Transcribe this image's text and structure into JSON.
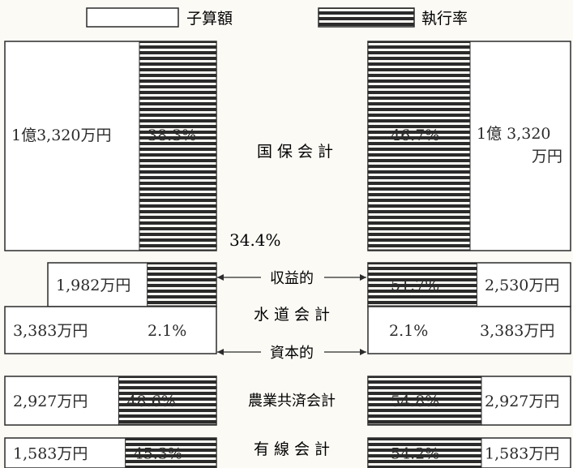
{
  "legend": {
    "items": [
      {
        "label": "子算額",
        "style": "outline"
      },
      {
        "label": "執行率",
        "style": "striped"
      }
    ]
  },
  "colors": {
    "ink": "#2b2b2b",
    "paper": "#fbfaf5",
    "box": "#ffffff"
  },
  "chart_data": {
    "type": "bar",
    "title": "",
    "categories": [
      "国 保 会 計",
      "水 道 会 計",
      "農業共済会計",
      "有 線 会 計"
    ],
    "sub_labels": {
      "revenue": "収益的",
      "capital": "資本的"
    },
    "left": [
      {
        "category": "国 保 会 計",
        "budget_label": "1億3,320万円",
        "rate_label": "38.3%",
        "rate": 38.3
      },
      {
        "category": "水 道 会 計",
        "sub": "収益的",
        "budget_label": "1,982万円",
        "rate_label": "",
        "rate": 34.4,
        "note": "34.4%"
      },
      {
        "category": "水 道 会 計",
        "sub": "資本的",
        "budget_label": "3,383万円",
        "rate_label": "2.1%",
        "rate": 2.1
      },
      {
        "category": "農業共済会計",
        "budget_label": "2,927万円",
        "rate_label": "48.6%",
        "rate": 48.6
      },
      {
        "category": "有 線 会 計",
        "budget_label": "1,583万円",
        "rate_label": "45.3%",
        "rate": 45.3
      }
    ],
    "right": [
      {
        "category": "国 保 会 計",
        "budget_label": "1億 3,320 万円",
        "rate_label": "46.7%",
        "rate": 46.7
      },
      {
        "category": "水 道 会 計",
        "sub": "収益的",
        "budget_label": "2,530万円",
        "rate_label": "51.7%",
        "rate": 51.7
      },
      {
        "category": "水 道 会 計",
        "sub": "資本的",
        "budget_label": "3,383万円",
        "rate_label": "2.1%",
        "rate": 2.1
      },
      {
        "category": "農業共済会計",
        "budget_label": "2,927万円",
        "rate_label": "54.8%",
        "rate": 54.8
      },
      {
        "category": "有 線 会 計",
        "budget_label": "1,583万円",
        "rate_label": "54.2%",
        "rate": 54.2
      }
    ]
  }
}
